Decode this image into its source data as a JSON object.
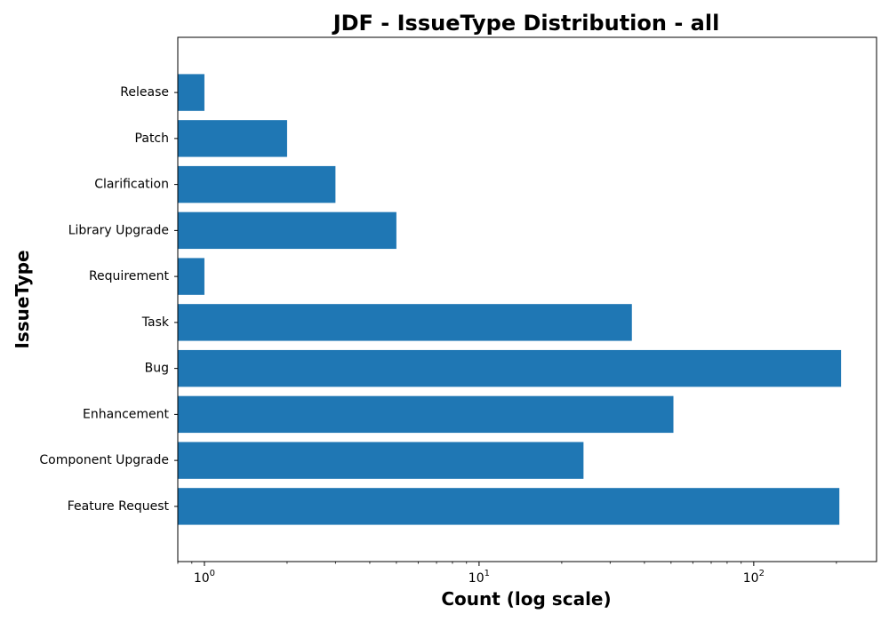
{
  "chart_data": {
    "type": "bar",
    "orientation": "horizontal",
    "title": "JDF - IssueType Distribution - all",
    "xlabel": "Count (log scale)",
    "ylabel": "IssueType",
    "x_scale": "log",
    "xlim": [
      0.8,
      280
    ],
    "x_ticks": [
      {
        "value": 1,
        "base": "10",
        "exp": "0"
      },
      {
        "value": 10,
        "base": "10",
        "exp": "1"
      },
      {
        "value": 100,
        "base": "10",
        "exp": "2"
      }
    ],
    "categories": [
      "Feature Request",
      "Component  Upgrade",
      "Enhancement",
      "Bug",
      "Task",
      "Requirement",
      "Library Upgrade",
      "Clarification",
      "Patch",
      "Release"
    ],
    "values": [
      205,
      24,
      51,
      208,
      36,
      1,
      5,
      3,
      2,
      1
    ],
    "bar_color": "#1f77b4",
    "grid": false,
    "legend": "none"
  }
}
